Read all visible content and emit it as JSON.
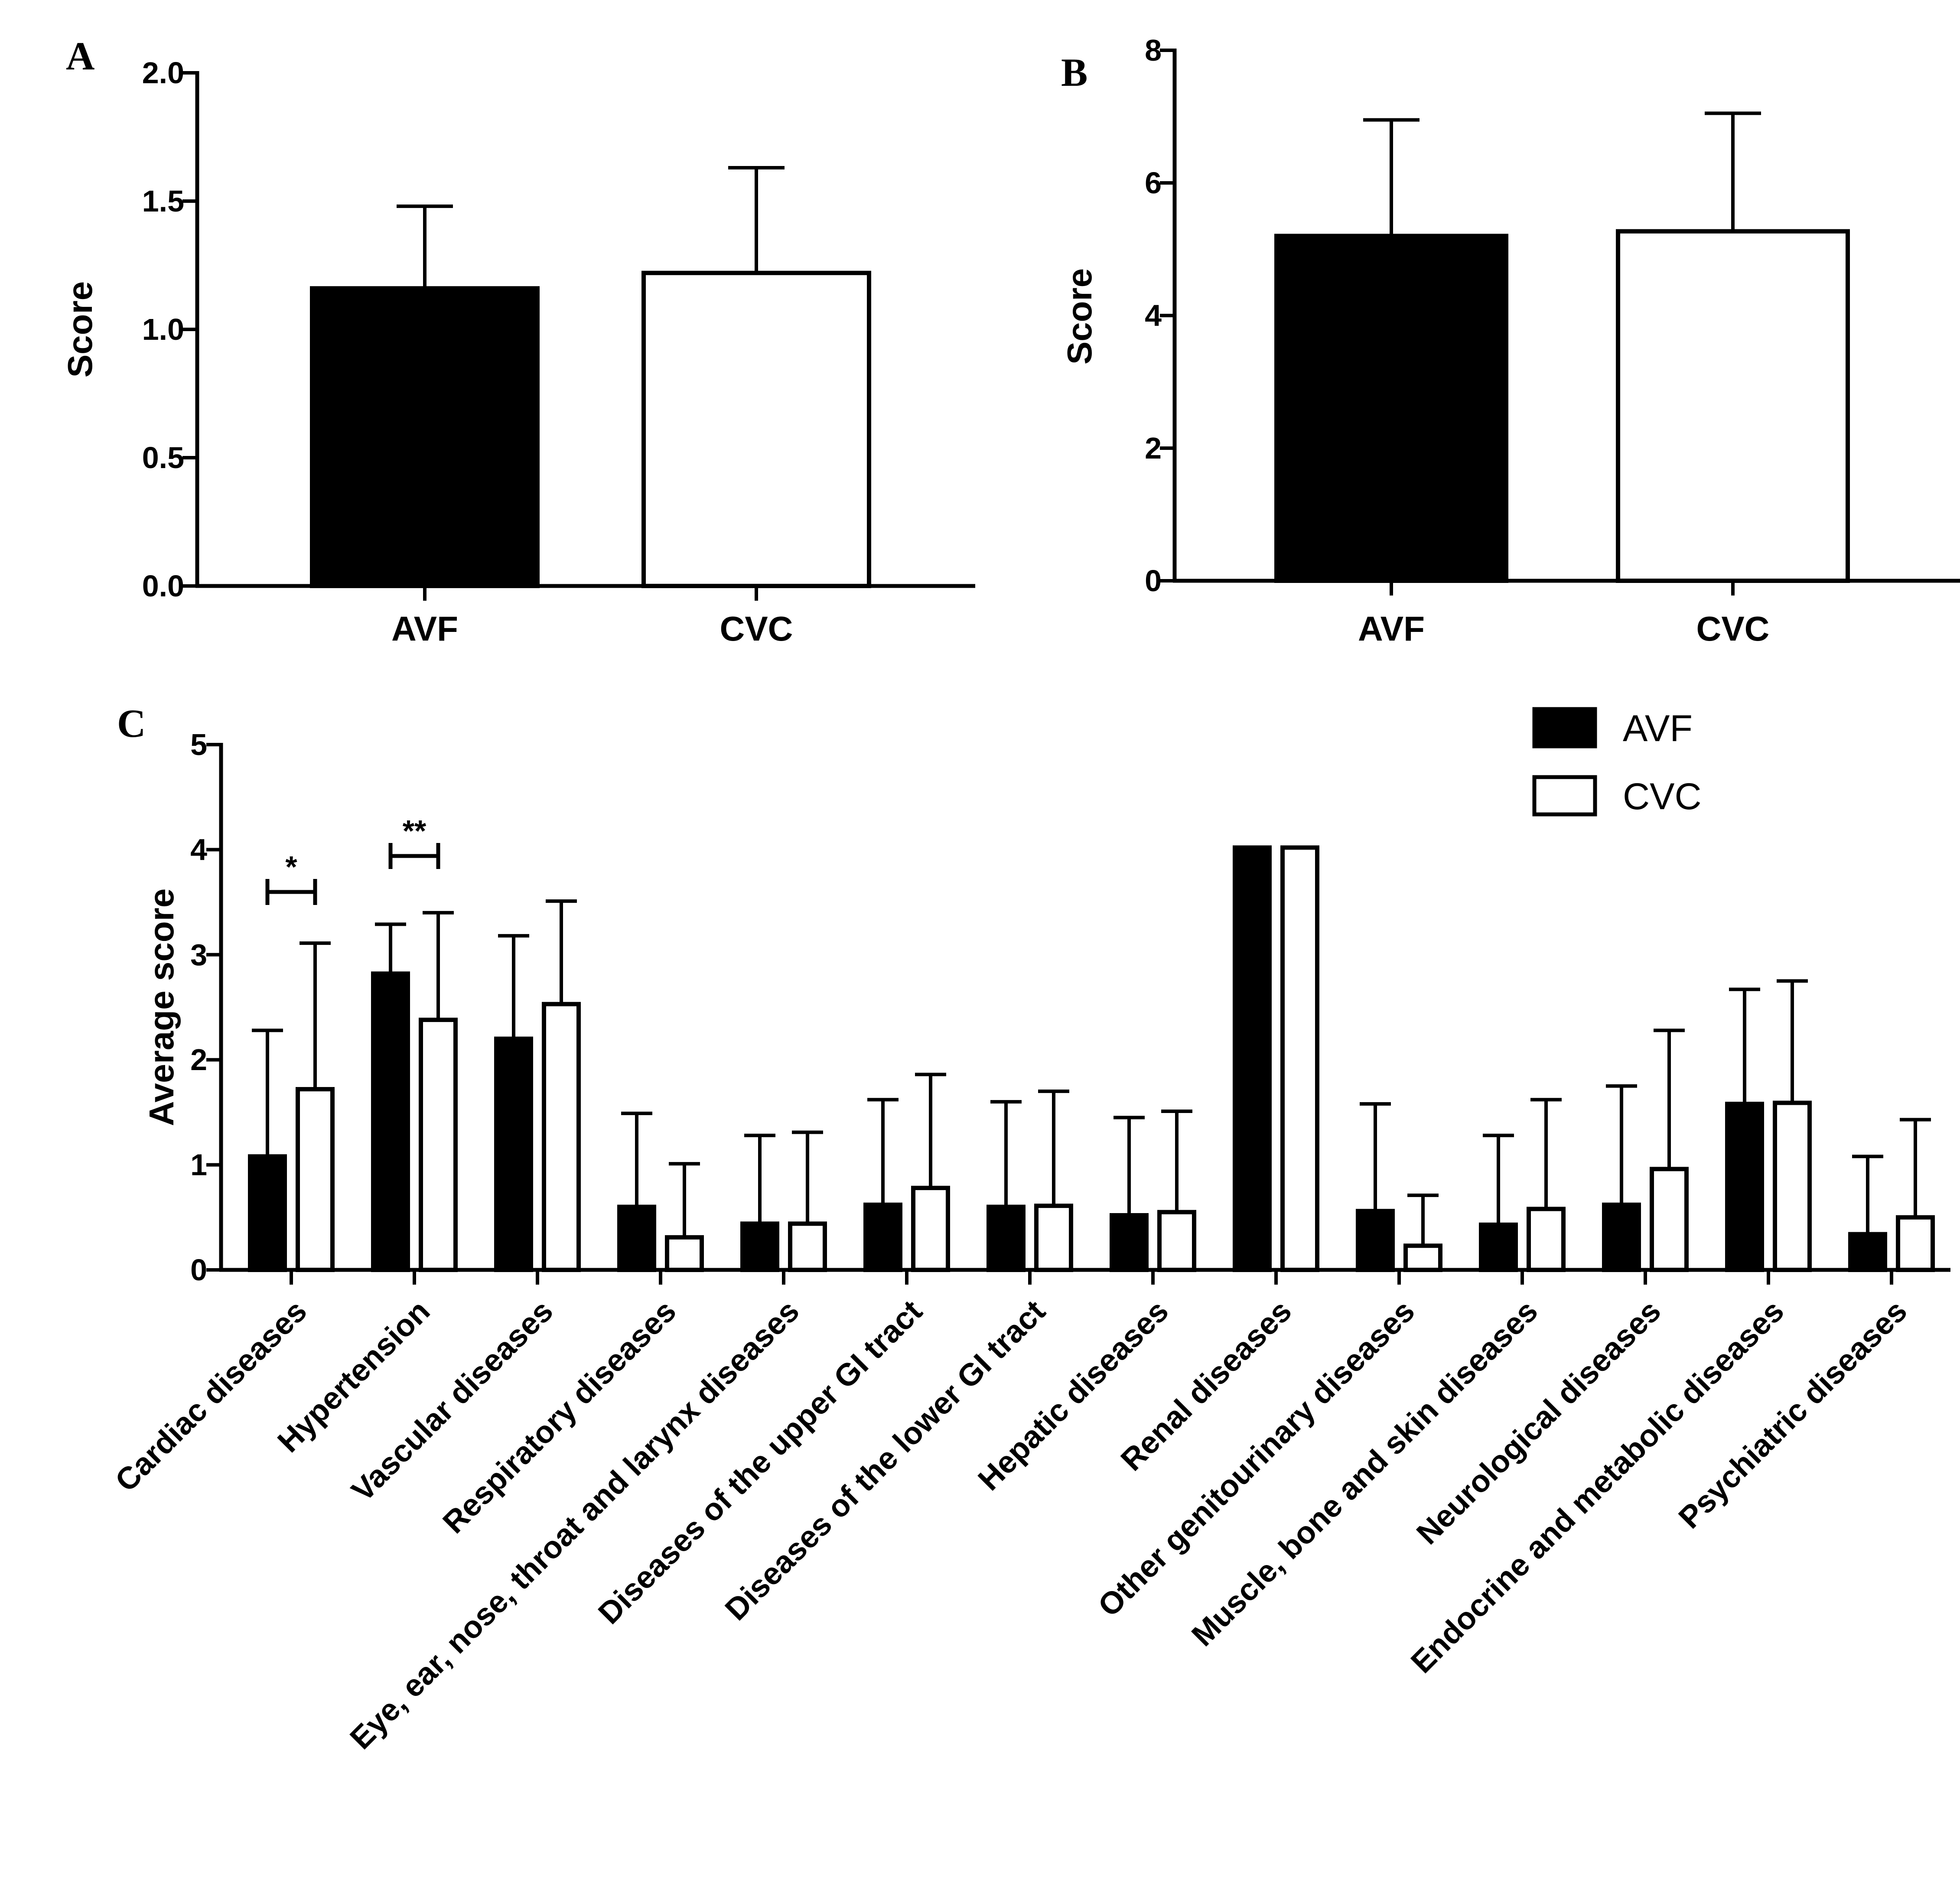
{
  "chart_data": [
    {
      "panel": "A",
      "type": "bar",
      "ylabel": "Score",
      "ylim": [
        0,
        2.0
      ],
      "yticks": [
        "0.0",
        "0.5",
        "1.0",
        "1.5",
        "2.0"
      ],
      "categories": [
        "AVF",
        "CVC"
      ],
      "values": [
        1.16,
        1.22
      ],
      "errors": [
        0.32,
        0.41
      ],
      "fills": [
        "#000000",
        "#ffffff"
      ]
    },
    {
      "panel": "B",
      "type": "bar",
      "ylabel": "Score",
      "ylim": [
        0,
        8
      ],
      "yticks": [
        "0",
        "2",
        "4",
        "6",
        "8"
      ],
      "categories": [
        "AVF",
        "CVC"
      ],
      "values": [
        5.2,
        5.27
      ],
      "errors": [
        1.75,
        1.78
      ],
      "fills": [
        "#000000",
        "#ffffff"
      ]
    },
    {
      "panel": "C",
      "type": "bar",
      "ylabel": "Average score",
      "ylim": [
        0,
        5
      ],
      "yticks": [
        "0",
        "1",
        "2",
        "3",
        "4",
        "5"
      ],
      "categories": [
        "Cardiac diseases",
        "Hypertension",
        "Vascular diseases",
        "Respiratory diseases",
        "Eye, ear, nose, throat and larynx diseases",
        "Diseases of the upper GI tract",
        "Diseases of the lower GI tract",
        "Hepatic diseases",
        "Renal diseases",
        "Other genitourinary diseases",
        "Muscle, bone and skin diseases",
        "Neurological diseases",
        "Endocrine and metabolic diseases",
        "Psychiatric diseases"
      ],
      "series": [
        {
          "name": "AVF",
          "fill": "#000000",
          "values": [
            1.08,
            2.82,
            2.2,
            0.6,
            0.44,
            0.62,
            0.6,
            0.52,
            4.02,
            0.56,
            0.43,
            0.62,
            1.58,
            0.34
          ],
          "errors": [
            1.2,
            0.47,
            0.98,
            0.89,
            0.84,
            1.0,
            1.0,
            0.93,
            0.0,
            1.02,
            0.85,
            1.13,
            1.09,
            0.74
          ]
        },
        {
          "name": "CVC",
          "fill": "#ffffff",
          "values": [
            1.72,
            2.38,
            2.53,
            0.31,
            0.44,
            0.78,
            0.61,
            0.55,
            4.02,
            0.23,
            0.58,
            0.96,
            1.59,
            0.5
          ],
          "errors": [
            1.39,
            1.02,
            0.98,
            0.7,
            0.87,
            1.08,
            1.09,
            0.96,
            0.0,
            0.48,
            1.04,
            1.32,
            1.16,
            0.93
          ]
        }
      ],
      "significance": [
        {
          "category_index": 0,
          "label": "*"
        },
        {
          "category_index": 1,
          "label": "**"
        }
      ],
      "legend": [
        "AVF",
        "CVC"
      ]
    }
  ]
}
